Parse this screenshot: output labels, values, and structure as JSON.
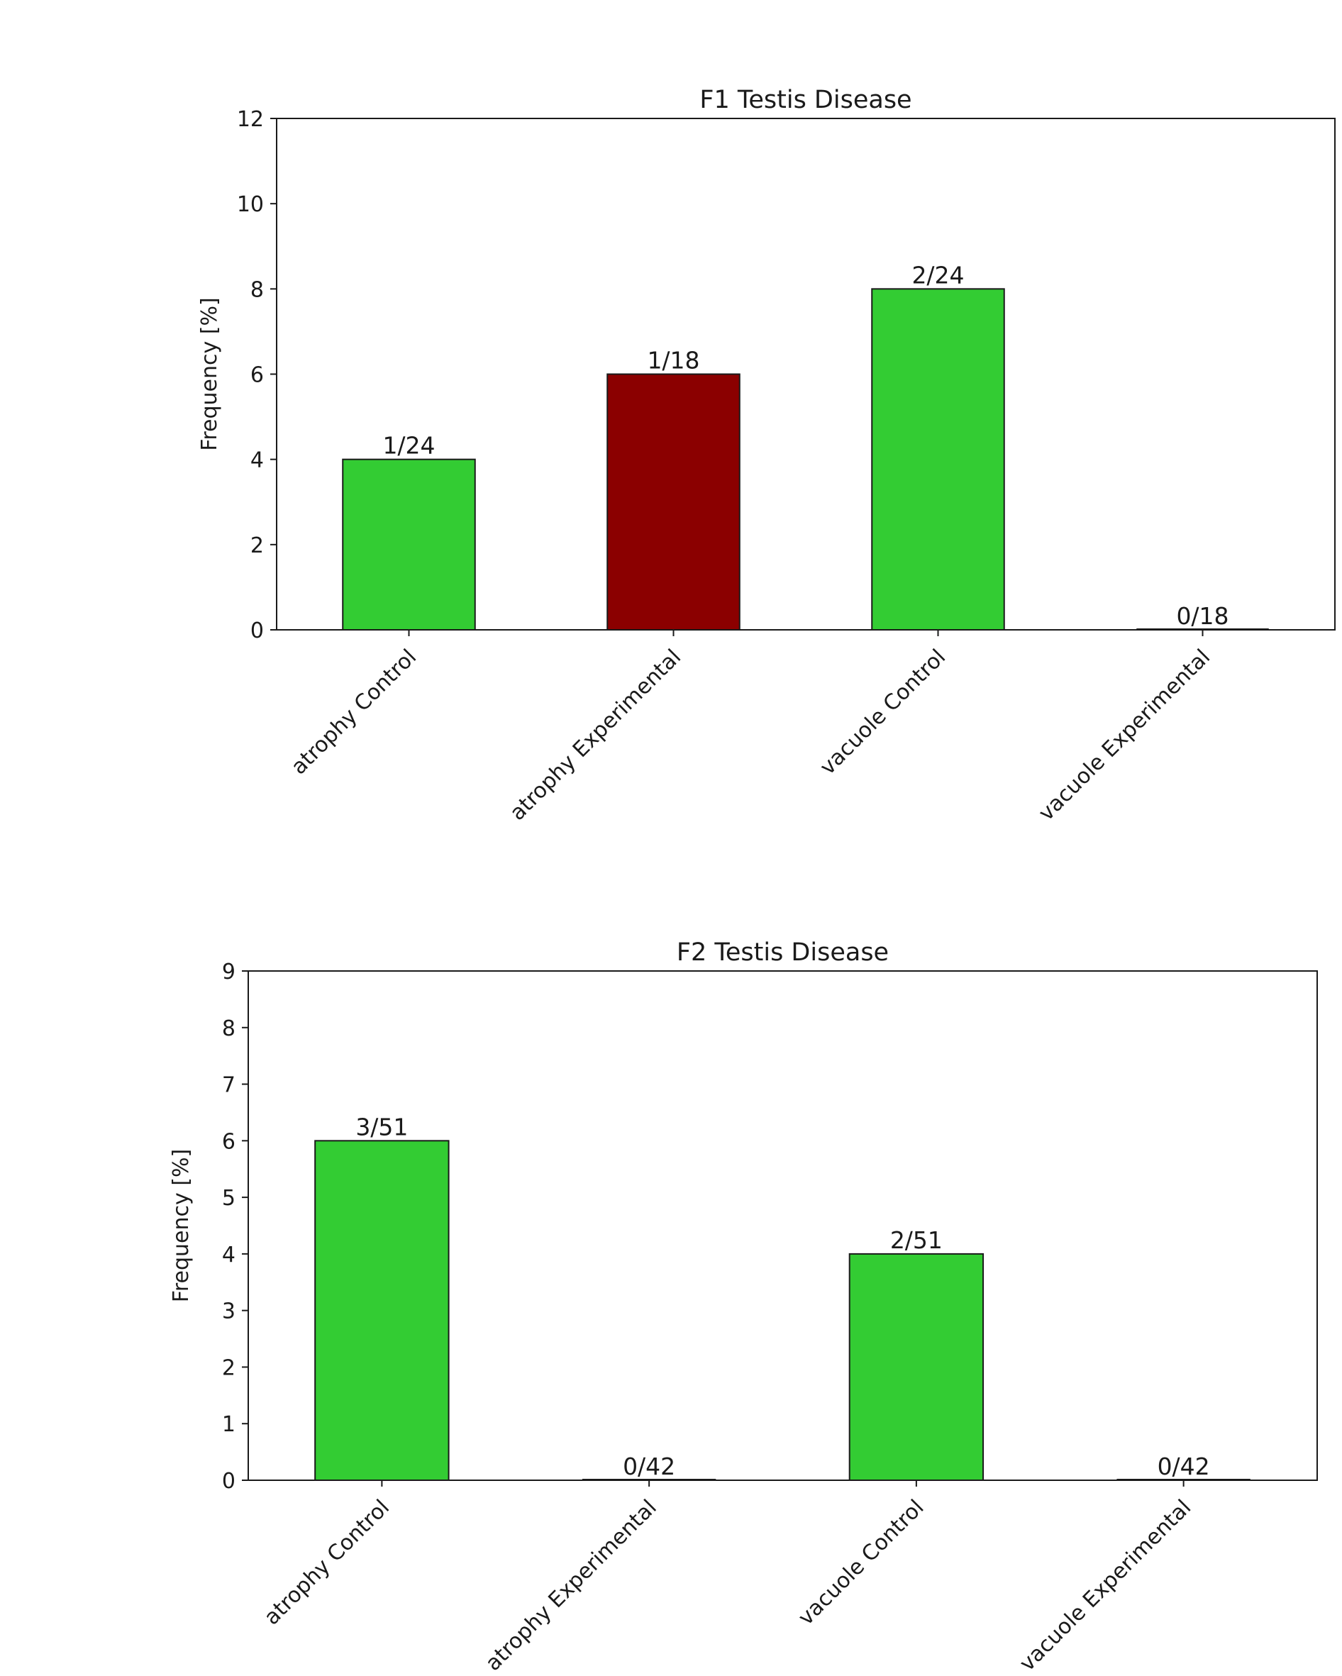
{
  "chart_data": [
    {
      "type": "bar",
      "title": "F1 Testis Disease",
      "xlabel": "",
      "ylabel": "Frequency [%]",
      "ylim": [
        0,
        12
      ],
      "yticks": [
        0,
        2,
        4,
        6,
        8,
        10,
        12
      ],
      "grid": false,
      "categories": [
        "atrophy Control",
        "atrophy Experimental",
        "vacuole Control",
        "vacuole Experimental"
      ],
      "values": [
        4,
        6,
        8,
        0
      ],
      "data_labels": [
        "1/24",
        "1/18",
        "2/24",
        "0/18"
      ],
      "colors": [
        "#33cc33",
        "#8b0000",
        "#33cc33",
        "#33cc33"
      ]
    },
    {
      "type": "bar",
      "title": "F2 Testis Disease",
      "xlabel": "",
      "ylabel": "Frequency [%]",
      "ylim": [
        0,
        9
      ],
      "yticks": [
        0,
        1,
        2,
        3,
        4,
        5,
        6,
        7,
        8,
        9
      ],
      "grid": false,
      "categories": [
        "atrophy Control",
        "atrophy Experimental",
        "vacuole Control",
        "vacuole Experimental"
      ],
      "values": [
        6,
        0,
        4,
        0
      ],
      "data_labels": [
        "3/51",
        "0/42",
        "2/51",
        "0/42"
      ],
      "colors": [
        "#33cc33",
        "#33cc33",
        "#33cc33",
        "#33cc33"
      ]
    }
  ]
}
